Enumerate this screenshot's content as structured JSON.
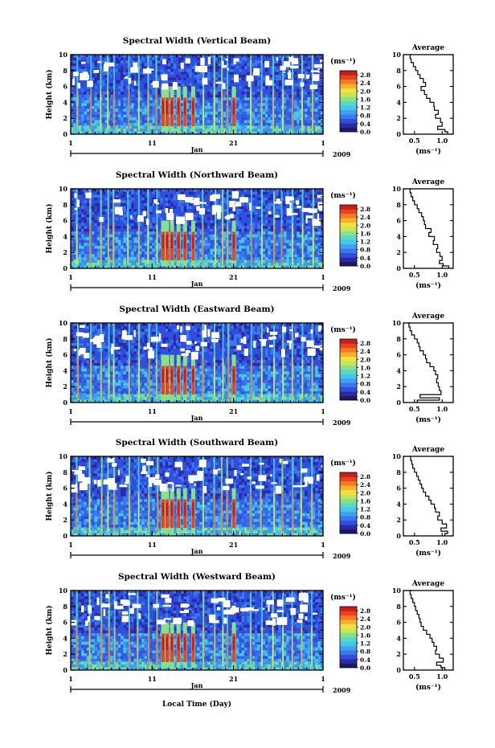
{
  "figure": {
    "xlabel": "Local Time (Day)",
    "month_label": "Jan",
    "year_label": "2009",
    "colorbar_unit": "(ms⁻¹)",
    "avg_title": "Average",
    "avg_xlabel": "(ms⁻¹)",
    "ylabel": "Height (km)"
  },
  "colors": {
    "scale": [
      "#1c1a64",
      "#2a2aa8",
      "#2f4fdc",
      "#3a78f0",
      "#3fa0f2",
      "#45c6ea",
      "#5ad8c0",
      "#8ae08a",
      "#c6e65a",
      "#f0e040",
      "#f6b030",
      "#f47a26",
      "#e8441e",
      "#c81e1a"
    ]
  },
  "chart_data": [
    {
      "type": "heatmap",
      "title": "Spectral Width (Vertical Beam)",
      "x_ticks": [
        "1",
        "11",
        "21",
        "1"
      ],
      "xlim": [
        1,
        32
      ],
      "y_ticks": [
        "0",
        "2",
        "4",
        "6",
        "8",
        "10"
      ],
      "ylim": [
        0,
        10
      ],
      "colorbar_ticks": [
        "0.0",
        "0.4",
        "0.8",
        "1.2",
        "1.6",
        "2.0",
        "2.4",
        "2.8"
      ],
      "colorbar_range": [
        0.0,
        3.0
      ],
      "avg_x_ticks": [
        "0.5",
        "1.0"
      ],
      "avg_xlim": [
        0.3,
        1.2
      ],
      "profile": {
        "heights": [
          0.0,
          0.3,
          0.6,
          1.0,
          1.5,
          2.0,
          2.5,
          3.0,
          3.5,
          4.0,
          4.5,
          5.0,
          5.5,
          6.0,
          6.5,
          7.0,
          7.5,
          8.0,
          8.5,
          9.0,
          9.5,
          10.0
        ],
        "values": [
          1.1,
          1.05,
          0.92,
          1.0,
          0.97,
          0.88,
          0.93,
          0.86,
          0.85,
          0.78,
          0.72,
          0.68,
          0.62,
          0.7,
          0.66,
          0.6,
          0.56,
          0.52,
          0.48,
          0.44,
          0.42,
          0.45
        ]
      }
    },
    {
      "type": "heatmap",
      "title": "Spectral Width (Northward Beam)",
      "x_ticks": [
        "1",
        "11",
        "21",
        "1"
      ],
      "xlim": [
        1,
        32
      ],
      "y_ticks": [
        "0",
        "2",
        "4",
        "6",
        "8",
        "10"
      ],
      "ylim": [
        0,
        10
      ],
      "colorbar_ticks": [
        "0.0",
        "0.4",
        "0.8",
        "1.2",
        "1.6",
        "2.0",
        "2.4",
        "2.8"
      ],
      "colorbar_range": [
        0.0,
        3.0
      ],
      "avg_x_ticks": [
        "0.5",
        "1.0"
      ],
      "avg_xlim": [
        0.3,
        1.2
      ],
      "profile": {
        "heights": [
          0.0,
          0.3,
          0.6,
          1.0,
          1.5,
          2.0,
          2.5,
          3.0,
          3.5,
          4.0,
          4.5,
          5.0,
          5.5,
          6.0,
          6.5,
          7.0,
          7.5,
          8.0,
          8.5,
          9.0,
          9.5,
          10.0
        ],
        "values": [
          1.12,
          1.02,
          0.95,
          1.0,
          0.96,
          0.9,
          0.92,
          0.84,
          0.86,
          0.76,
          0.8,
          0.7,
          0.68,
          0.66,
          0.63,
          0.58,
          0.55,
          0.5,
          0.47,
          0.44,
          0.42,
          0.44
        ]
      }
    },
    {
      "type": "heatmap",
      "title": "Spectral Width (Eastward Beam)",
      "x_ticks": [
        "1",
        "11",
        "21",
        "1"
      ],
      "xlim": [
        1,
        32
      ],
      "y_ticks": [
        "0",
        "2",
        "4",
        "6",
        "8",
        "10"
      ],
      "ylim": [
        0,
        10
      ],
      "colorbar_ticks": [
        "0.0",
        "0.4",
        "0.8",
        "1.2",
        "1.6",
        "2.0",
        "2.4",
        "2.8"
      ],
      "colorbar_range": [
        0.0,
        3.0
      ],
      "avg_x_ticks": [
        "0.5",
        "1.0"
      ],
      "avg_xlim": [
        0.3,
        1.2
      ],
      "profile": {
        "heights": [
          0.0,
          0.3,
          0.6,
          1.0,
          1.5,
          2.0,
          2.5,
          3.0,
          3.5,
          4.0,
          4.5,
          5.0,
          5.5,
          6.0,
          6.5,
          7.0,
          7.5,
          8.0,
          8.5,
          9.0,
          9.5,
          10.0
        ],
        "values": [
          0.55,
          0.95,
          0.6,
          0.98,
          0.95,
          0.93,
          0.9,
          0.92,
          0.88,
          0.85,
          0.78,
          0.72,
          0.7,
          0.66,
          0.6,
          0.58,
          0.55,
          0.5,
          0.45,
          0.42,
          0.4,
          0.43
        ]
      }
    },
    {
      "type": "heatmap",
      "title": "Spectral Width (Southward Beam)",
      "x_ticks": [
        "1",
        "11",
        "21",
        "1"
      ],
      "xlim": [
        1,
        32
      ],
      "y_ticks": [
        "0",
        "2",
        "4",
        "6",
        "8",
        "10"
      ],
      "ylim": [
        0,
        10
      ],
      "colorbar_ticks": [
        "0.0",
        "0.4",
        "0.8",
        "1.2",
        "1.6",
        "2.0",
        "2.4",
        "2.8"
      ],
      "colorbar_range": [
        0.0,
        3.0
      ],
      "avg_x_ticks": [
        "0.5",
        "1.0"
      ],
      "avg_xlim": [
        0.3,
        1.2
      ],
      "profile": {
        "heights": [
          0.0,
          0.3,
          0.6,
          1.0,
          1.5,
          2.0,
          2.5,
          3.0,
          3.5,
          4.0,
          4.5,
          5.0,
          5.5,
          6.0,
          6.5,
          7.0,
          7.5,
          8.0,
          8.5,
          9.0,
          9.5,
          10.0
        ],
        "values": [
          1.05,
          1.1,
          0.98,
          1.08,
          1.0,
          0.92,
          0.95,
          0.88,
          0.86,
          0.8,
          0.76,
          0.7,
          0.66,
          0.63,
          0.6,
          0.57,
          0.54,
          0.5,
          0.47,
          0.45,
          0.43,
          0.44
        ]
      }
    },
    {
      "type": "heatmap",
      "title": "Spectral Width (Westward Beam)",
      "x_ticks": [
        "1",
        "11",
        "21",
        "1"
      ],
      "xlim": [
        1,
        32
      ],
      "y_ticks": [
        "0",
        "2",
        "4",
        "6",
        "8",
        "10"
      ],
      "ylim": [
        0,
        10
      ],
      "colorbar_ticks": [
        "0.0",
        "0.4",
        "0.8",
        "1.2",
        "1.6",
        "2.0",
        "2.4",
        "2.8"
      ],
      "colorbar_range": [
        0.0,
        3.0
      ],
      "avg_x_ticks": [
        "0.5",
        "1.0"
      ],
      "avg_xlim": [
        0.3,
        1.2
      ],
      "profile": {
        "heights": [
          0.0,
          0.3,
          0.6,
          1.0,
          1.5,
          2.0,
          2.5,
          3.0,
          3.5,
          4.0,
          4.5,
          5.0,
          5.5,
          6.0,
          6.5,
          7.0,
          7.5,
          8.0,
          8.5,
          9.0,
          9.5,
          10.0
        ],
        "values": [
          1.05,
          0.98,
          0.9,
          1.02,
          0.95,
          0.88,
          0.9,
          0.85,
          0.82,
          0.78,
          0.72,
          0.66,
          0.62,
          0.6,
          0.58,
          0.55,
          0.52,
          0.5,
          0.47,
          0.44,
          0.42,
          0.45
        ]
      }
    }
  ]
}
